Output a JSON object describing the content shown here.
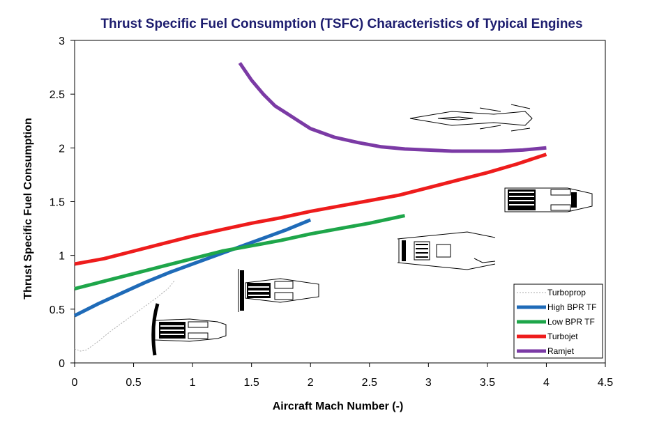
{
  "chart_data": {
    "type": "line",
    "title": "Thrust Specific Fuel Consumption (TSFC) Characteristics of Typical Engines",
    "xlabel": "Aircraft Mach Number (-)",
    "ylabel": "Thrust Specific Fuel Consumption",
    "xlim": [
      0,
      4.5
    ],
    "ylim": [
      0,
      3
    ],
    "x_ticks": [
      "0",
      "0.5",
      "1",
      "1.5",
      "2",
      "2.5",
      "3",
      "3.5",
      "4",
      "4.5"
    ],
    "y_ticks": [
      "0",
      "0.5",
      "1",
      "1.5",
      "2",
      "2.5",
      "3"
    ],
    "legend_position": "bottom-right",
    "series": [
      {
        "name": "Turboprop",
        "color": "#aaaaaa",
        "width": 1,
        "dash": "2,2",
        "points": [
          [
            0.0,
            0.13
          ],
          [
            0.05,
            0.11
          ],
          [
            0.1,
            0.12
          ],
          [
            0.2,
            0.2
          ],
          [
            0.3,
            0.29
          ],
          [
            0.4,
            0.37
          ],
          [
            0.5,
            0.45
          ],
          [
            0.6,
            0.53
          ],
          [
            0.7,
            0.61
          ],
          [
            0.8,
            0.7
          ],
          [
            0.85,
            0.77
          ]
        ]
      },
      {
        "name": "High BPR TF",
        "color": "#1f6bb8",
        "width": 5,
        "dash": "",
        "points": [
          [
            0,
            0.44
          ],
          [
            0.2,
            0.55
          ],
          [
            0.4,
            0.65
          ],
          [
            0.6,
            0.75
          ],
          [
            0.8,
            0.84
          ],
          [
            1.0,
            0.92
          ],
          [
            1.2,
            1.0
          ],
          [
            1.4,
            1.08
          ],
          [
            1.6,
            1.16
          ],
          [
            1.8,
            1.24
          ],
          [
            2.0,
            1.33
          ]
        ]
      },
      {
        "name": "Low BPR TF",
        "color": "#1ea64a",
        "width": 5,
        "dash": "",
        "points": [
          [
            0,
            0.69
          ],
          [
            0.25,
            0.76
          ],
          [
            0.5,
            0.83
          ],
          [
            0.75,
            0.9
          ],
          [
            1.0,
            0.97
          ],
          [
            1.25,
            1.04
          ],
          [
            1.5,
            1.09
          ],
          [
            1.75,
            1.14
          ],
          [
            2.0,
            1.2
          ],
          [
            2.25,
            1.25
          ],
          [
            2.5,
            1.3
          ],
          [
            2.8,
            1.37
          ]
        ]
      },
      {
        "name": "Turbojet",
        "color": "#ee1c1c",
        "width": 5,
        "dash": "",
        "points": [
          [
            0,
            0.92
          ],
          [
            0.25,
            0.97
          ],
          [
            0.5,
            1.04
          ],
          [
            0.75,
            1.11
          ],
          [
            1.0,
            1.18
          ],
          [
            1.25,
            1.24
          ],
          [
            1.5,
            1.3
          ],
          [
            1.75,
            1.35
          ],
          [
            2.0,
            1.41
          ],
          [
            2.25,
            1.46
          ],
          [
            2.5,
            1.51
          ],
          [
            2.75,
            1.56
          ],
          [
            3.0,
            1.63
          ],
          [
            3.25,
            1.7
          ],
          [
            3.5,
            1.77
          ],
          [
            3.75,
            1.85
          ],
          [
            4.0,
            1.94
          ]
        ]
      },
      {
        "name": "Ramjet",
        "color": "#7b3aa5",
        "width": 5,
        "dash": "",
        "points": [
          [
            1.4,
            2.79
          ],
          [
            1.5,
            2.63
          ],
          [
            1.6,
            2.5
          ],
          [
            1.7,
            2.39
          ],
          [
            1.8,
            2.32
          ],
          [
            1.9,
            2.25
          ],
          [
            2.0,
            2.18
          ],
          [
            2.2,
            2.1
          ],
          [
            2.4,
            2.05
          ],
          [
            2.6,
            2.01
          ],
          [
            2.8,
            1.99
          ],
          [
            3.0,
            1.98
          ],
          [
            3.2,
            1.97
          ],
          [
            3.4,
            1.97
          ],
          [
            3.6,
            1.97
          ],
          [
            3.8,
            1.98
          ],
          [
            4.0,
            2.0
          ]
        ]
      }
    ]
  }
}
